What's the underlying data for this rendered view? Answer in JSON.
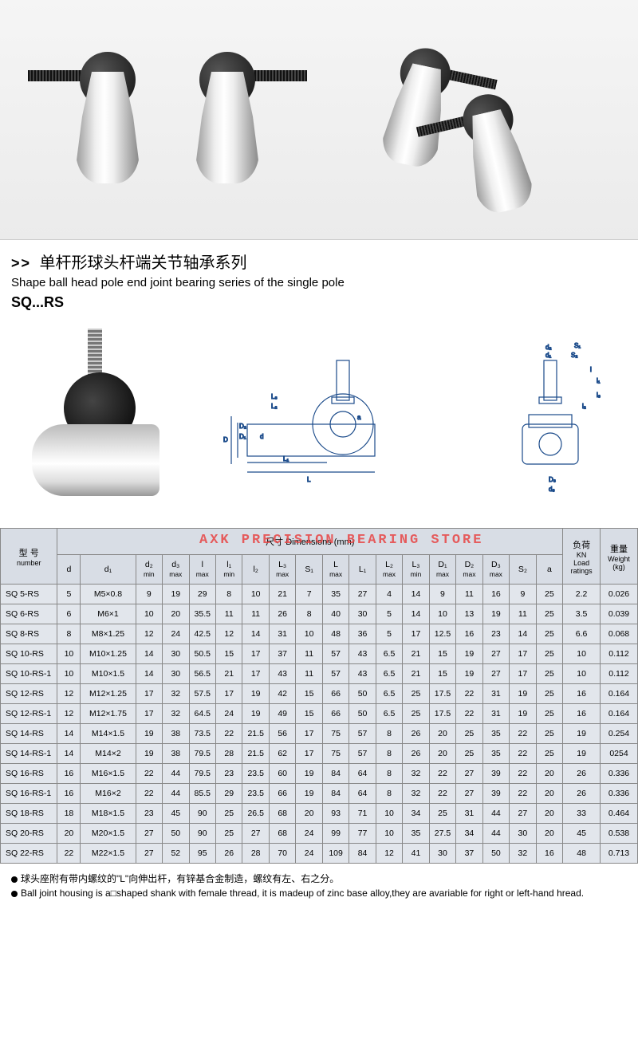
{
  "titles": {
    "arrows": ">>",
    "cn": "单杆形球头杆端关节轴承系列",
    "en": "Shape ball head pole end joint bearing series of the single pole",
    "series": "SQ...RS"
  },
  "watermark": "AXK PRECISION BEARING STORE",
  "diagram_labels": {
    "front": [
      "L",
      "L₁",
      "L₂",
      "L₃",
      "d",
      "D",
      "D₁",
      "D₂",
      "a"
    ],
    "side": [
      "d₁",
      "d₂",
      "d₃",
      "D₃",
      "S₁",
      "S₂",
      "l",
      "l₁",
      "l₂",
      "l₃"
    ]
  },
  "table": {
    "header_group": {
      "number_cn": "型 号",
      "number_en": "number",
      "dims_cn": "尺寸",
      "dims_en": "Dimensions",
      "dims_unit": "(mm)",
      "load_cn": "负荷",
      "load_unit": "KN",
      "load_en": "Load ratings",
      "weight_cn": "重量",
      "weight_en": "Weight",
      "weight_unit": "(kg)"
    },
    "subheaders": [
      "d",
      "d₁",
      "d₂ min",
      "d₃ max",
      "l max",
      "l₁ min",
      "l₂",
      "L₃ max",
      "S₁",
      "L max",
      "L₁",
      "L₂ max",
      "L₃ min",
      "D₁ max",
      "D₂ max",
      "D₃ max",
      "S₂",
      "a"
    ],
    "rows": [
      {
        "n": "SQ 5-RS",
        "d": "5",
        "d1": "M5×0.8",
        "v": [
          "9",
          "19",
          "29",
          "8",
          "10",
          "21",
          "7",
          "35",
          "27",
          "4",
          "14",
          "9",
          "11",
          "16",
          "9",
          "25"
        ],
        "load": "2.2",
        "wt": "0.026"
      },
      {
        "n": "SQ 6-RS",
        "d": "6",
        "d1": "M6×1",
        "v": [
          "10",
          "20",
          "35.5",
          "11",
          "11",
          "26",
          "8",
          "40",
          "30",
          "5",
          "14",
          "10",
          "13",
          "19",
          "11",
          "25"
        ],
        "load": "3.5",
        "wt": "0.039"
      },
      {
        "n": "SQ 8-RS",
        "d": "8",
        "d1": "M8×1.25",
        "v": [
          "12",
          "24",
          "42.5",
          "12",
          "14",
          "31",
          "10",
          "48",
          "36",
          "5",
          "17",
          "12.5",
          "16",
          "23",
          "14",
          "25"
        ],
        "load": "6.6",
        "wt": "0.068"
      },
      {
        "n": "SQ 10-RS",
        "d": "10",
        "d1": "M10×1.25",
        "v": [
          "14",
          "30",
          "50.5",
          "15",
          "17",
          "37",
          "11",
          "57",
          "43",
          "6.5",
          "21",
          "15",
          "19",
          "27",
          "17",
          "25"
        ],
        "load": "10",
        "wt": "0.112"
      },
      {
        "n": "SQ 10-RS-1",
        "d": "10",
        "d1": "M10×1.5",
        "v": [
          "14",
          "30",
          "56.5",
          "21",
          "17",
          "43",
          "11",
          "57",
          "43",
          "6.5",
          "21",
          "15",
          "19",
          "27",
          "17",
          "25"
        ],
        "load": "10",
        "wt": "0.112"
      },
      {
        "n": "SQ 12-RS",
        "d": "12",
        "d1": "M12×1.25",
        "v": [
          "17",
          "32",
          "57.5",
          "17",
          "19",
          "42",
          "15",
          "66",
          "50",
          "6.5",
          "25",
          "17.5",
          "22",
          "31",
          "19",
          "25"
        ],
        "load": "16",
        "wt": "0.164"
      },
      {
        "n": "SQ 12-RS-1",
        "d": "12",
        "d1": "M12×1.75",
        "v": [
          "17",
          "32",
          "64.5",
          "24",
          "19",
          "49",
          "15",
          "66",
          "50",
          "6.5",
          "25",
          "17.5",
          "22",
          "31",
          "19",
          "25"
        ],
        "load": "16",
        "wt": "0.164"
      },
      {
        "n": "SQ 14-RS",
        "d": "14",
        "d1": "M14×1.5",
        "v": [
          "19",
          "38",
          "73.5",
          "22",
          "21.5",
          "56",
          "17",
          "75",
          "57",
          "8",
          "26",
          "20",
          "25",
          "35",
          "22",
          "25"
        ],
        "load": "19",
        "wt": "0.254"
      },
      {
        "n": "SQ 14-RS-1",
        "d": "14",
        "d1": "M14×2",
        "v": [
          "19",
          "38",
          "79.5",
          "28",
          "21.5",
          "62",
          "17",
          "75",
          "57",
          "8",
          "26",
          "20",
          "25",
          "35",
          "22",
          "25"
        ],
        "load": "19",
        "wt": "0254"
      },
      {
        "n": "SQ 16-RS",
        "d": "16",
        "d1": "M16×1.5",
        "v": [
          "22",
          "44",
          "79.5",
          "23",
          "23.5",
          "60",
          "19",
          "84",
          "64",
          "8",
          "32",
          "22",
          "27",
          "39",
          "22",
          "20"
        ],
        "load": "26",
        "wt": "0.336"
      },
      {
        "n": "SQ 16-RS-1",
        "d": "16",
        "d1": "M16×2",
        "v": [
          "22",
          "44",
          "85.5",
          "29",
          "23.5",
          "66",
          "19",
          "84",
          "64",
          "8",
          "32",
          "22",
          "27",
          "39",
          "22",
          "20"
        ],
        "load": "26",
        "wt": "0.336"
      },
      {
        "n": "SQ 18-RS",
        "d": "18",
        "d1": "M18×1.5",
        "v": [
          "23",
          "45",
          "90",
          "25",
          "26.5",
          "68",
          "20",
          "93",
          "71",
          "10",
          "34",
          "25",
          "31",
          "44",
          "27",
          "20"
        ],
        "load": "33",
        "wt": "0.464"
      },
      {
        "n": "SQ 20-RS",
        "d": "20",
        "d1": "M20×1.5",
        "v": [
          "27",
          "50",
          "90",
          "25",
          "27",
          "68",
          "24",
          "99",
          "77",
          "10",
          "35",
          "27.5",
          "34",
          "44",
          "30",
          "20"
        ],
        "load": "45",
        "wt": "0.538"
      },
      {
        "n": "SQ 22-RS",
        "d": "22",
        "d1": "M22×1.5",
        "v": [
          "27",
          "52",
          "95",
          "26",
          "28",
          "70",
          "24",
          "109",
          "84",
          "12",
          "41",
          "30",
          "37",
          "50",
          "32",
          "16"
        ],
        "load": "48",
        "wt": "0.713"
      }
    ]
  },
  "footnotes": {
    "cn": "球头座附有带内螺纹的\"L\"向伸出杆，有锌基合金制造，螺纹有左、右之分。",
    "en": "Ball joint housing is a□shaped shank  with female thread, it is madeup of zinc base alloy,they are avariable for right or left-hand hread."
  },
  "colors": {
    "table_bg": "#e2e6ec",
    "table_header_bg": "#d8dde5",
    "border": "#888888",
    "drawing_stroke": "#1a4a8a",
    "watermark": "#e84545"
  }
}
